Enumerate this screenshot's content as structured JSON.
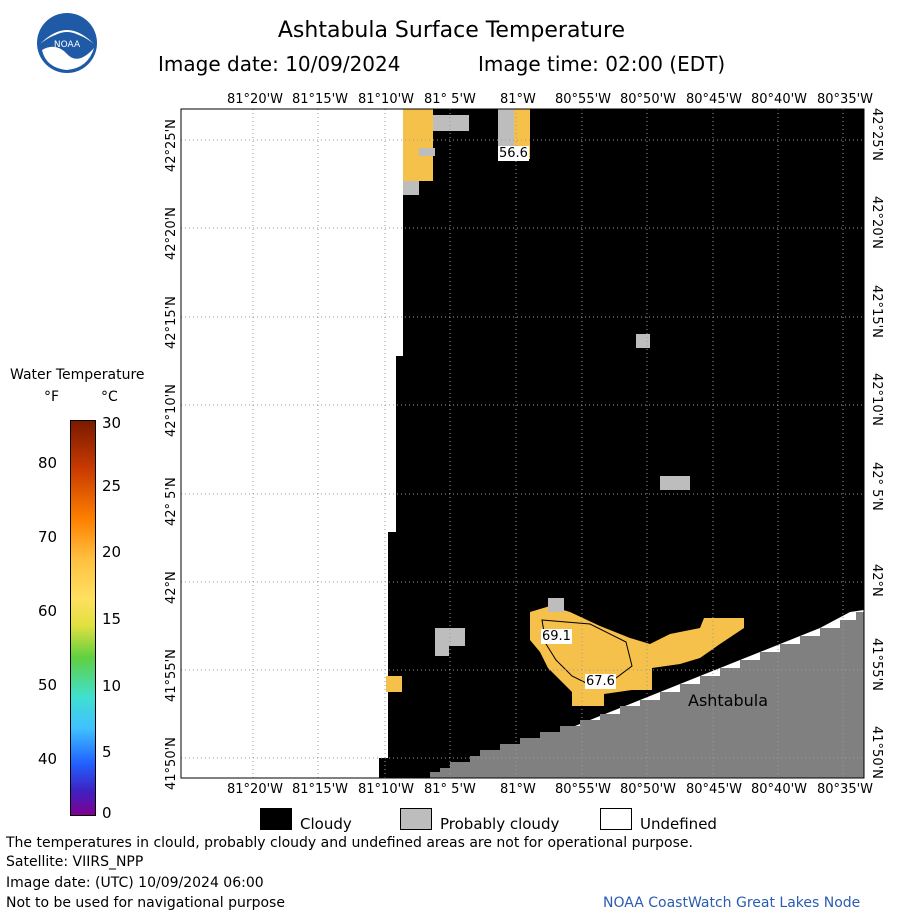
{
  "header": {
    "title": "Ashtabula Surface Temperature",
    "image_date_label": "Image date: 10/09/2024",
    "image_time_label": "Image time: 02:00 (EDT)"
  },
  "logo": {
    "text": "NOAA"
  },
  "map": {
    "lon_labels_top": [
      "81°20'W",
      "81°15'W",
      "81°10'W",
      "81° 5'W",
      "81°W",
      "80°55'W",
      "80°50'W",
      "80°45'W",
      "80°40'W",
      "80°35'W"
    ],
    "lon_labels_bottom": [
      "81°20'W",
      "81°15'W",
      "81°10'W",
      "81° 5'W",
      "81°W",
      "80°55'W",
      "80°50'W",
      "80°45'W",
      "80°40'W",
      "80°35'W"
    ],
    "lat_labels": [
      "42°25'N",
      "42°20'N",
      "42°15'N",
      "42°10'N",
      "42° 5'N",
      "42°N",
      "41°55'N",
      "41°50'N"
    ],
    "temp_labels": [
      "56.6",
      "69.1",
      "67.6"
    ],
    "place_label": "Ashtabula",
    "colors": {
      "cloudy": "#000000",
      "probably_cloudy": "#bdbdbd",
      "land": "#808080",
      "undefined": "#ffffff",
      "warm": "#f5c14a"
    }
  },
  "colorbar": {
    "title": "Water Temperature",
    "unit_f": "°F",
    "unit_c": "°C",
    "f_ticks": [
      "80",
      "70",
      "60",
      "50",
      "40"
    ],
    "c_ticks": [
      "30",
      "25",
      "20",
      "15",
      "10",
      "5",
      "0"
    ]
  },
  "legend": {
    "cloudy": "Cloudy",
    "probably_cloudy": "Probably cloudy",
    "undefined": "Undefined"
  },
  "footer": {
    "disclaimer": "The temperatures in clould, probably cloudy and undefined areas are not for operational purpose.",
    "satellite": "Satellite: VIIRS_NPP",
    "utc_date": "Image date: (UTC) 10/09/2024  06:00",
    "nav_note": "Not to be used for navigational purpose",
    "credit": "NOAA CoastWatch Great Lakes Node"
  }
}
